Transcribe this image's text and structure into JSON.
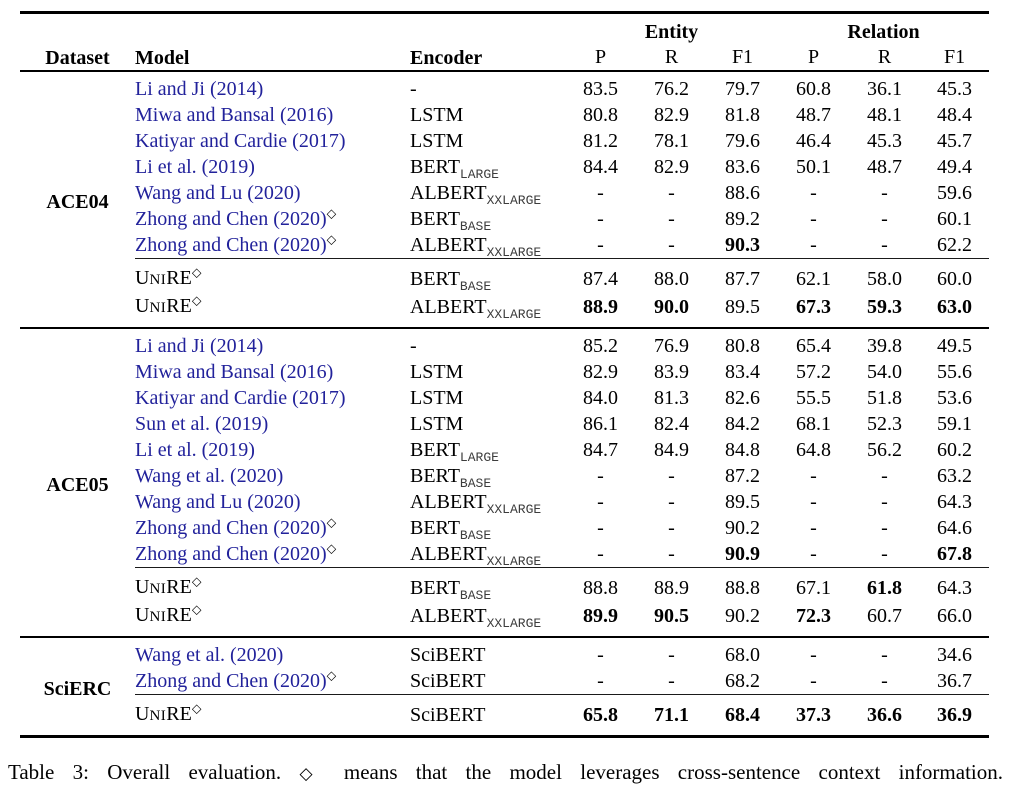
{
  "colors": {
    "citation_link": "#22229b"
  },
  "table": {
    "header": {
      "dataset": "Dataset",
      "model": "Model",
      "encoder": "Encoder",
      "entity_group": "Entity",
      "relation_group": "Relation",
      "metrics": [
        "P",
        "R",
        "F1",
        "P",
        "R",
        "F1"
      ]
    },
    "sections": [
      {
        "dataset": "ACE04",
        "rows": [
          {
            "model": [
              [
                "Li and Ji (2014)",
                "cite"
              ]
            ],
            "sup": "",
            "encoder": [
              [
                "-",
                ""
              ]
            ],
            "values": [
              "83.5",
              "76.2",
              "79.7",
              "60.8",
              "36.1",
              "45.3"
            ],
            "bold": []
          },
          {
            "model": [
              [
                "Miwa and Bansal (2016)",
                "cite"
              ]
            ],
            "sup": "",
            "encoder": [
              [
                "LSTM",
                ""
              ]
            ],
            "values": [
              "80.8",
              "82.9",
              "81.8",
              "48.7",
              "48.1",
              "48.4"
            ],
            "bold": []
          },
          {
            "model": [
              [
                "Katiyar and Cardie (2017)",
                "cite"
              ]
            ],
            "sup": "",
            "encoder": [
              [
                "LSTM",
                ""
              ]
            ],
            "values": [
              "81.2",
              "78.1",
              "79.6",
              "46.4",
              "45.3",
              "45.7"
            ],
            "bold": []
          },
          {
            "model": [
              [
                "Li et al. (2019)",
                "cite"
              ]
            ],
            "sup": "",
            "encoder": [
              [
                "BERT",
                ""
              ],
              [
                "LARGE",
                "sub"
              ]
            ],
            "values": [
              "84.4",
              "82.9",
              "83.6",
              "50.1",
              "48.7",
              "49.4"
            ],
            "bold": []
          },
          {
            "model": [
              [
                "Wang and Lu (2020)",
                "cite"
              ]
            ],
            "sup": "",
            "encoder": [
              [
                "ALBERT",
                ""
              ],
              [
                "XXLARGE",
                "sub"
              ]
            ],
            "values": [
              "-",
              "-",
              "88.6",
              "-",
              "-",
              "59.6"
            ],
            "bold": []
          },
          {
            "model": [
              [
                "Zhong and Chen (2020)",
                "cite"
              ]
            ],
            "sup": "◇",
            "encoder": [
              [
                "BERT",
                ""
              ],
              [
                "BASE",
                "sub"
              ]
            ],
            "values": [
              "-",
              "-",
              "89.2",
              "-",
              "-",
              "60.1"
            ],
            "bold": []
          },
          {
            "model": [
              [
                "Zhong and Chen (2020)",
                "cite"
              ]
            ],
            "sup": "◇",
            "encoder": [
              [
                "ALBERT",
                ""
              ],
              [
                "XXLARGE",
                "sub"
              ]
            ],
            "values": [
              "-",
              "-",
              "90.3",
              "-",
              "-",
              "62.2"
            ],
            "bold": [
              2
            ]
          }
        ],
        "ours": [
          {
            "model": [
              [
                "U",
                ""
              ],
              [
                "NI",
                "sc"
              ],
              [
                "RE",
                ""
              ]
            ],
            "sup": "◇",
            "encoder": [
              [
                "BERT",
                ""
              ],
              [
                "BASE",
                "sub"
              ]
            ],
            "values": [
              "87.4",
              "88.0",
              "87.7",
              "62.1",
              "58.0",
              "60.0"
            ],
            "bold": []
          },
          {
            "model": [
              [
                "U",
                ""
              ],
              [
                "NI",
                "sc"
              ],
              [
                "RE",
                ""
              ]
            ],
            "sup": "◇",
            "encoder": [
              [
                "ALBERT",
                ""
              ],
              [
                "XXLARGE",
                "sub"
              ]
            ],
            "values": [
              "88.9",
              "90.0",
              "89.5",
              "67.3",
              "59.3",
              "63.0"
            ],
            "bold": [
              0,
              1,
              3,
              4,
              5
            ]
          }
        ]
      },
      {
        "dataset": "ACE05",
        "rows": [
          {
            "model": [
              [
                "Li and Ji (2014)",
                "cite"
              ]
            ],
            "sup": "",
            "encoder": [
              [
                "-",
                ""
              ]
            ],
            "values": [
              "85.2",
              "76.9",
              "80.8",
              "65.4",
              "39.8",
              "49.5"
            ],
            "bold": []
          },
          {
            "model": [
              [
                "Miwa and Bansal (2016)",
                "cite"
              ]
            ],
            "sup": "",
            "encoder": [
              [
                "LSTM",
                ""
              ]
            ],
            "values": [
              "82.9",
              "83.9",
              "83.4",
              "57.2",
              "54.0",
              "55.6"
            ],
            "bold": []
          },
          {
            "model": [
              [
                "Katiyar and Cardie (2017)",
                "cite"
              ]
            ],
            "sup": "",
            "encoder": [
              [
                "LSTM",
                ""
              ]
            ],
            "values": [
              "84.0",
              "81.3",
              "82.6",
              "55.5",
              "51.8",
              "53.6"
            ],
            "bold": []
          },
          {
            "model": [
              [
                "Sun et al. (2019)",
                "cite"
              ]
            ],
            "sup": "",
            "encoder": [
              [
                "LSTM",
                ""
              ]
            ],
            "values": [
              "86.1",
              "82.4",
              "84.2",
              "68.1",
              "52.3",
              "59.1"
            ],
            "bold": []
          },
          {
            "model": [
              [
                "Li et al. (2019)",
                "cite"
              ]
            ],
            "sup": "",
            "encoder": [
              [
                "BERT",
                ""
              ],
              [
                "LARGE",
                "sub"
              ]
            ],
            "values": [
              "84.7",
              "84.9",
              "84.8",
              "64.8",
              "56.2",
              "60.2"
            ],
            "bold": []
          },
          {
            "model": [
              [
                "Wang et al. (2020)",
                "cite"
              ]
            ],
            "sup": "",
            "encoder": [
              [
                "BERT",
                ""
              ],
              [
                "BASE",
                "sub"
              ]
            ],
            "values": [
              "-",
              "-",
              "87.2",
              "-",
              "-",
              "63.2"
            ],
            "bold": []
          },
          {
            "model": [
              [
                "Wang and Lu (2020)",
                "cite"
              ]
            ],
            "sup": "",
            "encoder": [
              [
                "ALBERT",
                ""
              ],
              [
                "XXLARGE",
                "sub"
              ]
            ],
            "values": [
              "-",
              "-",
              "89.5",
              "-",
              "-",
              "64.3"
            ],
            "bold": []
          },
          {
            "model": [
              [
                "Zhong and Chen (2020)",
                "cite"
              ]
            ],
            "sup": "◇",
            "encoder": [
              [
                "BERT",
                ""
              ],
              [
                "BASE",
                "sub"
              ]
            ],
            "values": [
              "-",
              "-",
              "90.2",
              "-",
              "-",
              "64.6"
            ],
            "bold": []
          },
          {
            "model": [
              [
                "Zhong and Chen (2020)",
                "cite"
              ]
            ],
            "sup": "◇",
            "encoder": [
              [
                "ALBERT",
                ""
              ],
              [
                "XXLARGE",
                "sub"
              ]
            ],
            "values": [
              "-",
              "-",
              "90.9",
              "-",
              "-",
              "67.8"
            ],
            "bold": [
              2,
              5
            ]
          }
        ],
        "ours": [
          {
            "model": [
              [
                "U",
                ""
              ],
              [
                "NI",
                "sc"
              ],
              [
                "RE",
                ""
              ]
            ],
            "sup": "◇",
            "encoder": [
              [
                "BERT",
                ""
              ],
              [
                "BASE",
                "sub"
              ]
            ],
            "values": [
              "88.8",
              "88.9",
              "88.8",
              "67.1",
              "61.8",
              "64.3"
            ],
            "bold": [
              4
            ]
          },
          {
            "model": [
              [
                "U",
                ""
              ],
              [
                "NI",
                "sc"
              ],
              [
                "RE",
                ""
              ]
            ],
            "sup": "◇",
            "encoder": [
              [
                "ALBERT",
                ""
              ],
              [
                "XXLARGE",
                "sub"
              ]
            ],
            "values": [
              "89.9",
              "90.5",
              "90.2",
              "72.3",
              "60.7",
              "66.0"
            ],
            "bold": [
              0,
              1,
              3
            ]
          }
        ]
      },
      {
        "dataset": "SciERC",
        "rows": [
          {
            "model": [
              [
                "Wang et al. (2020)",
                "cite"
              ]
            ],
            "sup": "",
            "encoder": [
              [
                "SciBERT",
                ""
              ]
            ],
            "values": [
              "-",
              "-",
              "68.0",
              "-",
              "-",
              "34.6"
            ],
            "bold": []
          },
          {
            "model": [
              [
                "Zhong and Chen (2020)",
                "cite"
              ]
            ],
            "sup": "◇",
            "encoder": [
              [
                "SciBERT",
                ""
              ]
            ],
            "values": [
              "-",
              "-",
              "68.2",
              "-",
              "-",
              "36.7"
            ],
            "bold": []
          }
        ],
        "ours": [
          {
            "model": [
              [
                "U",
                ""
              ],
              [
                "NI",
                "sc"
              ],
              [
                "RE",
                ""
              ]
            ],
            "sup": "◇",
            "encoder": [
              [
                "SciBERT",
                ""
              ]
            ],
            "values": [
              "65.8",
              "71.1",
              "68.4",
              "37.3",
              "36.6",
              "36.9"
            ],
            "bold": [
              0,
              1,
              2,
              3,
              4,
              5
            ]
          }
        ]
      }
    ],
    "caption_prefix": "Table 3: Overall evaluation. ",
    "caption_diamond": "◇",
    "caption_suffix": " means that the model leverages cross-sentence context information."
  }
}
